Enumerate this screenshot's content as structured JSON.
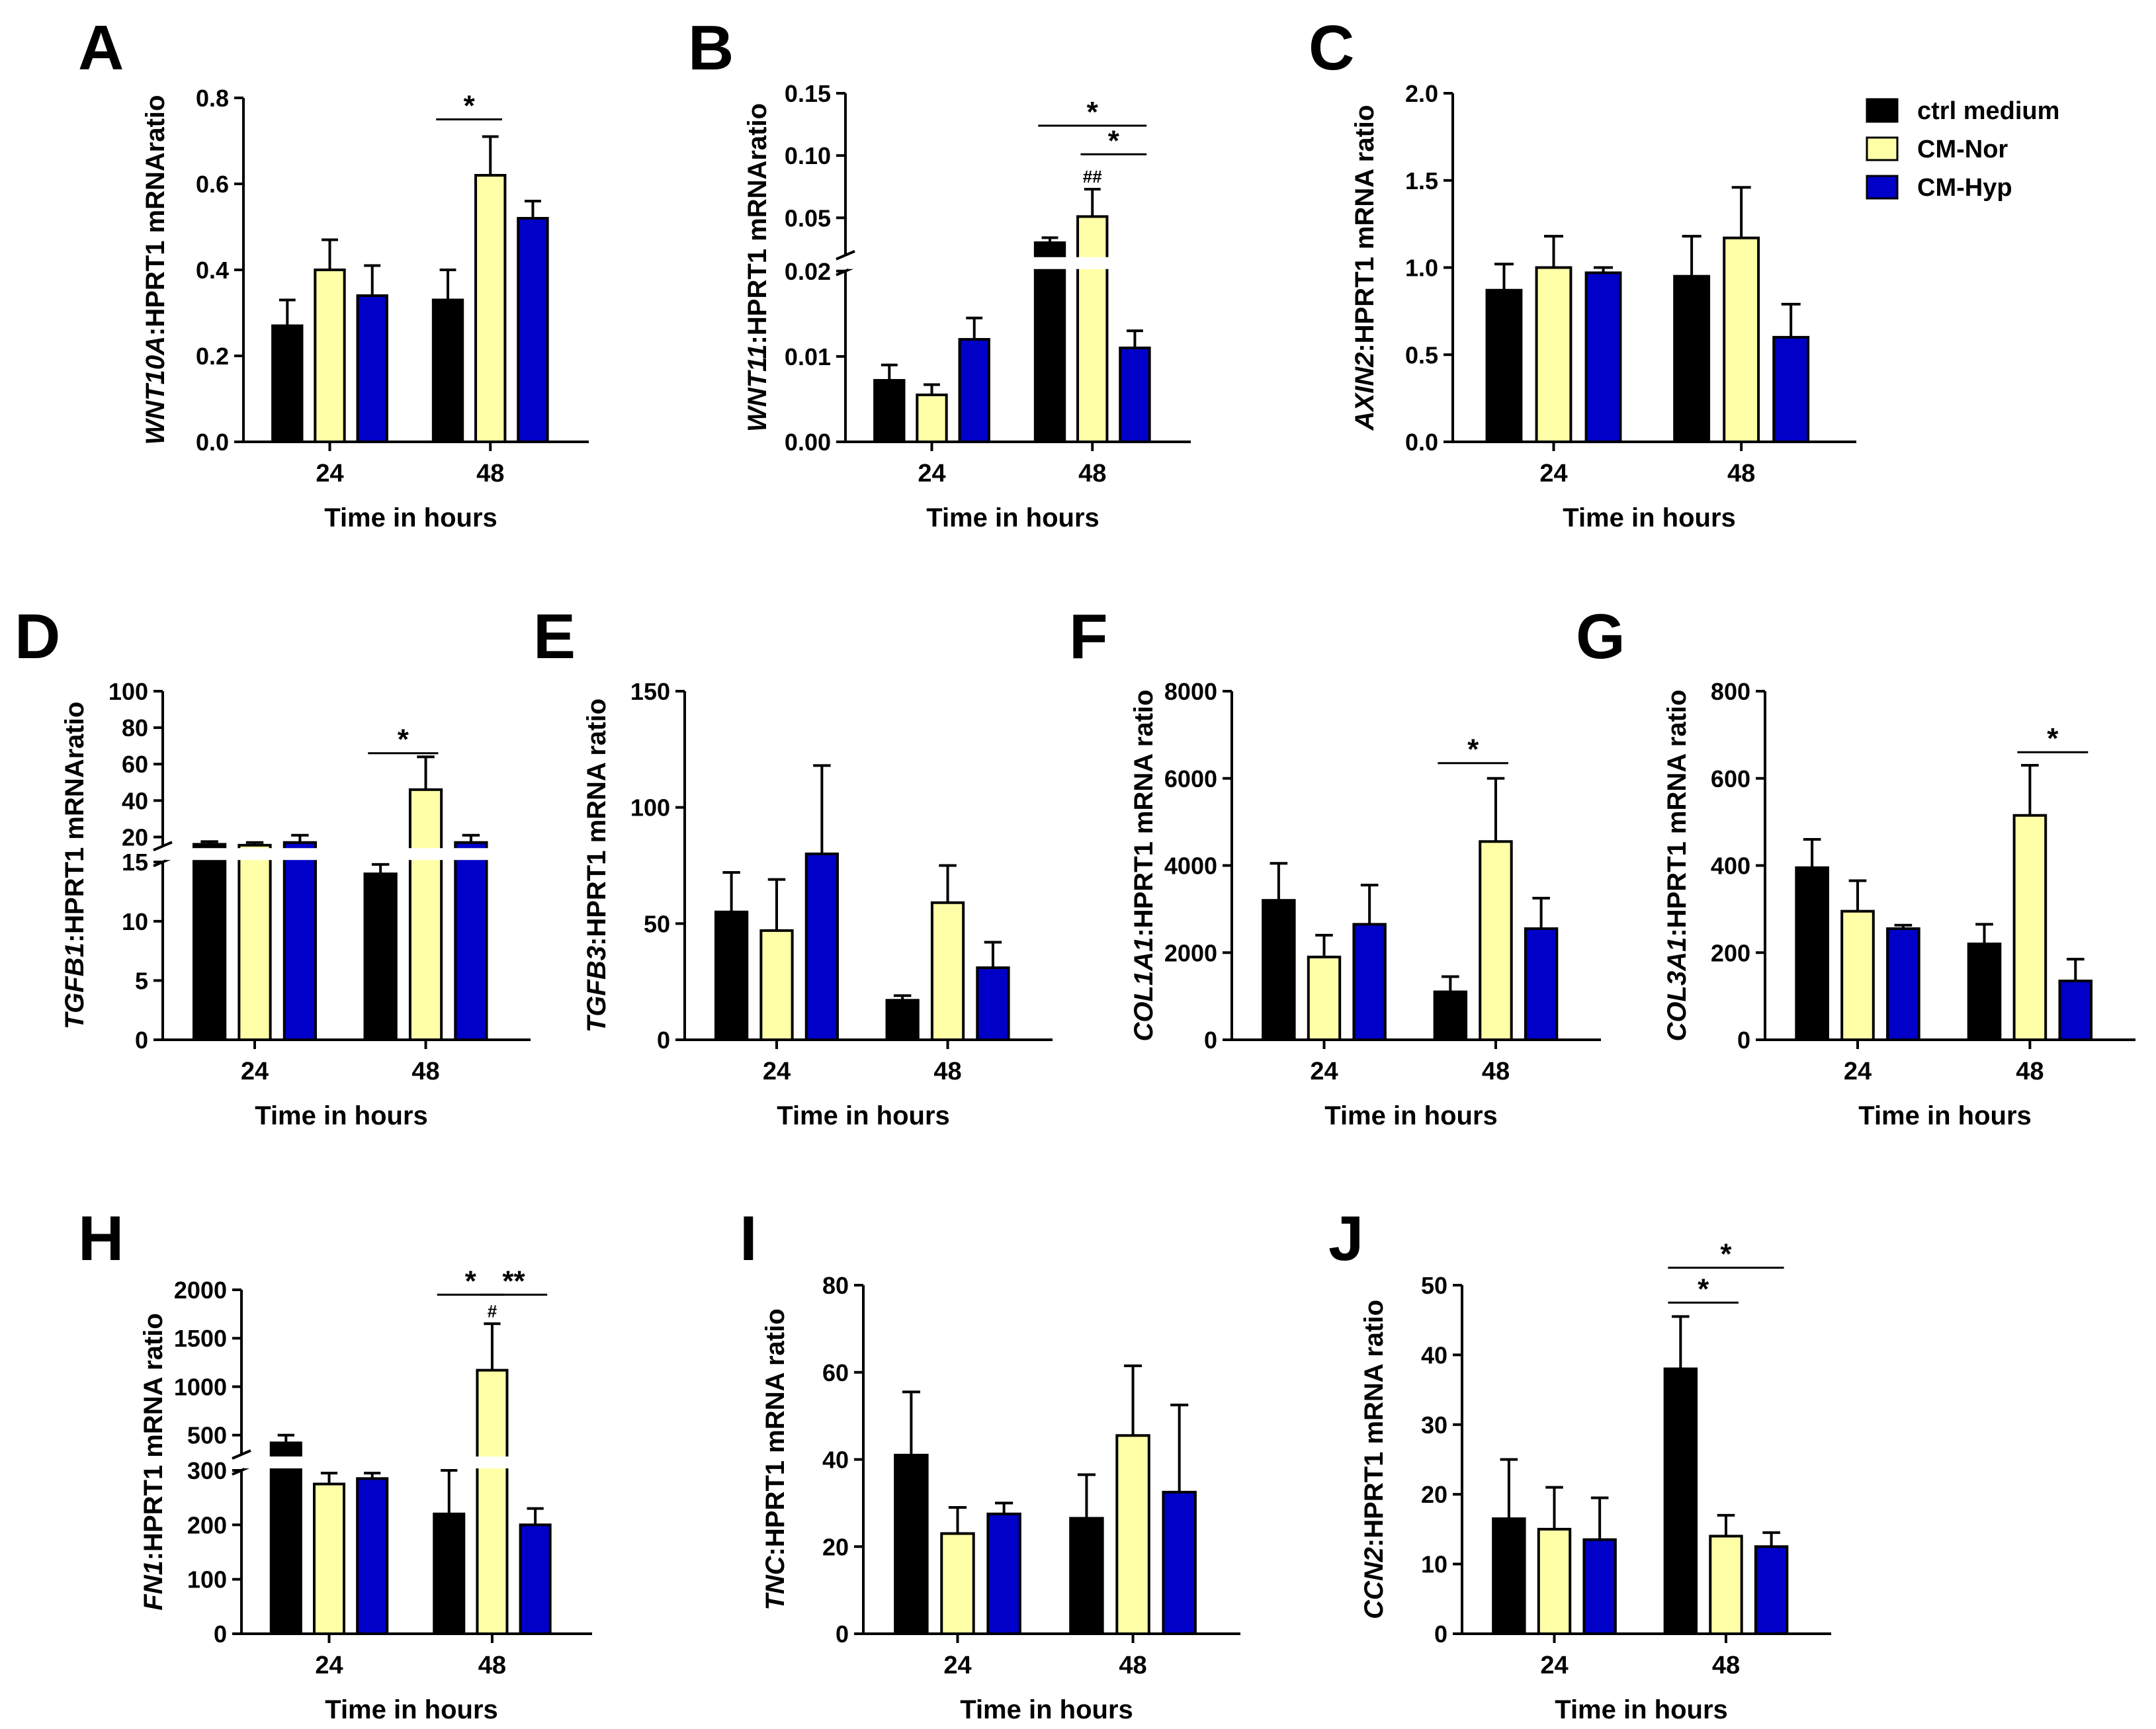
{
  "legend": [
    {
      "name": "ctrl medium",
      "color": "#000000"
    },
    {
      "name": "CM-Nor",
      "color": "#FFFFA8"
    },
    {
      "name": "CM-Hyp",
      "color": "#0000C8"
    }
  ],
  "chart_data": [
    {
      "panel": "A",
      "type": "bar",
      "gene": "WNT10A",
      "ylabel_suffix": ":HPRT1 mRNAratio",
      "xlabel": "Time in hours",
      "categories": [
        "24",
        "48"
      ],
      "ylim": [
        0,
        0.8
      ],
      "yticks": [
        {
          "v": 0,
          "label": "0.0"
        },
        {
          "v": 0.2,
          "label": "0.2"
        },
        {
          "v": 0.4,
          "label": "0.4"
        },
        {
          "v": 0.6,
          "label": "0.6"
        },
        {
          "v": 0.8,
          "label": "0.8"
        }
      ],
      "series": [
        {
          "name": "ctrl medium",
          "values": [
            0.27,
            0.33
          ],
          "errors": [
            0.06,
            0.07
          ]
        },
        {
          "name": "CM-Nor",
          "values": [
            0.4,
            0.62
          ],
          "errors": [
            0.07,
            0.09
          ]
        },
        {
          "name": "CM-Hyp",
          "values": [
            0.34,
            0.52
          ],
          "errors": [
            0.07,
            0.04
          ]
        }
      ],
      "annotations": [
        {
          "text": "*",
          "from": [
            1,
            0
          ],
          "to": [
            1,
            1
          ],
          "y": 0.75
        }
      ],
      "hash": []
    },
    {
      "panel": "B",
      "type": "bar",
      "gene": "WNT11",
      "ylabel_suffix": ":HPRT1 mRNAratio",
      "xlabel": "Time in hours",
      "categories": [
        "24",
        "48"
      ],
      "axis_break": {
        "lower": [
          0,
          0.02
        ],
        "upper": [
          0.02,
          0.15
        ],
        "lower_frac": 0.49
      },
      "yticks": [
        {
          "v": 0,
          "label": "0.00"
        },
        {
          "v": 0.01,
          "label": "0.01"
        },
        {
          "v": 0.02,
          "label": "0.02"
        },
        {
          "v": 0.05,
          "label": "0.05"
        },
        {
          "v": 0.1,
          "label": "0.10"
        },
        {
          "v": 0.15,
          "label": "0.15"
        }
      ],
      "series": [
        {
          "name": "ctrl medium",
          "values": [
            0.0072,
            0.03
          ],
          "errors": [
            0.0018,
            0.004
          ]
        },
        {
          "name": "CM-Nor",
          "values": [
            0.0055,
            0.051
          ],
          "errors": [
            0.0012,
            0.022
          ]
        },
        {
          "name": "CM-Hyp",
          "values": [
            0.012,
            0.011
          ],
          "errors": [
            0.0025,
            0.002
          ]
        }
      ],
      "annotations": [
        {
          "text": "*",
          "from": [
            1,
            0
          ],
          "to": [
            1,
            2
          ],
          "y": 0.124
        },
        {
          "text": "*",
          "from": [
            1,
            1
          ],
          "to": [
            1,
            2
          ],
          "y": 0.101
        }
      ],
      "hash": [
        {
          "text": "##",
          "group": 1,
          "series": 1
        }
      ]
    },
    {
      "panel": "C",
      "type": "bar",
      "gene": "AXIN2",
      "ylabel_suffix": ":HPRT1 mRNA ratio",
      "xlabel": "Time in hours",
      "categories": [
        "24",
        "48"
      ],
      "ylim": [
        0,
        2.0
      ],
      "yticks": [
        {
          "v": 0,
          "label": "0.0"
        },
        {
          "v": 0.5,
          "label": "0.5"
        },
        {
          "v": 1.0,
          "label": "1.0"
        },
        {
          "v": 1.5,
          "label": "1.5"
        },
        {
          "v": 2.0,
          "label": "2.0"
        }
      ],
      "series": [
        {
          "name": "ctrl medium",
          "values": [
            0.87,
            0.95
          ],
          "errors": [
            0.15,
            0.23
          ]
        },
        {
          "name": "CM-Nor",
          "values": [
            1.0,
            1.17
          ],
          "errors": [
            0.18,
            0.29
          ]
        },
        {
          "name": "CM-Hyp",
          "values": [
            0.97,
            0.6
          ],
          "errors": [
            0.03,
            0.19
          ]
        }
      ],
      "annotations": [],
      "hash": []
    },
    {
      "panel": "D",
      "type": "bar",
      "gene": "TGFB1",
      "ylabel_suffix": ":HPRT1 mRNAratio",
      "xlabel": "Time in hours",
      "categories": [
        "24",
        "48"
      ],
      "axis_break": {
        "lower": [
          0,
          15
        ],
        "upper": [
          15,
          100
        ],
        "lower_frac": 0.51
      },
      "yticks": [
        {
          "v": 0,
          "label": "0"
        },
        {
          "v": 5,
          "label": "5"
        },
        {
          "v": 10,
          "label": "10"
        },
        {
          "v": 15,
          "label": "15"
        },
        {
          "v": 20,
          "label": "20"
        },
        {
          "v": 40,
          "label": "40"
        },
        {
          "v": 60,
          "label": "60"
        },
        {
          "v": 80,
          "label": "80"
        },
        {
          "v": 100,
          "label": "100"
        }
      ],
      "series": [
        {
          "name": "ctrl medium",
          "values": [
            16,
            14
          ],
          "errors": [
            1.5,
            0.8
          ]
        },
        {
          "name": "CM-Nor",
          "values": [
            15.5,
            46
          ],
          "errors": [
            1.5,
            18
          ]
        },
        {
          "name": "CM-Hyp",
          "values": [
            17,
            17
          ],
          "errors": [
            4,
            4
          ]
        }
      ],
      "annotations": [
        {
          "text": "*",
          "from": [
            1,
            0
          ],
          "to": [
            1,
            1
          ],
          "y": 66
        }
      ],
      "hash": []
    },
    {
      "panel": "E",
      "type": "bar",
      "gene": "TGFB3",
      "ylabel_suffix": ":HPRT1 mRNA ratio",
      "xlabel": "Time in hours",
      "categories": [
        "24",
        "48"
      ],
      "ylim": [
        0,
        150
      ],
      "yticks": [
        {
          "v": 0,
          "label": "0"
        },
        {
          "v": 50,
          "label": "50"
        },
        {
          "v": 100,
          "label": "100"
        },
        {
          "v": 150,
          "label": "150"
        }
      ],
      "series": [
        {
          "name": "ctrl medium",
          "values": [
            55,
            17
          ],
          "errors": [
            17,
            2
          ]
        },
        {
          "name": "CM-Nor",
          "values": [
            47,
            59
          ],
          "errors": [
            22,
            16
          ]
        },
        {
          "name": "CM-Hyp",
          "values": [
            80,
            31
          ],
          "errors": [
            38,
            11
          ]
        }
      ],
      "annotations": [],
      "hash": []
    },
    {
      "panel": "F",
      "type": "bar",
      "gene": "COL1A1",
      "ylabel_suffix": ":HPRT1 mRNA ratio",
      "xlabel": "Time in hours",
      "categories": [
        "24",
        "48"
      ],
      "ylim": [
        0,
        8000
      ],
      "yticks": [
        {
          "v": 0,
          "label": "0"
        },
        {
          "v": 2000,
          "label": "2000"
        },
        {
          "v": 4000,
          "label": "4000"
        },
        {
          "v": 6000,
          "label": "6000"
        },
        {
          "v": 8000,
          "label": "8000"
        }
      ],
      "series": [
        {
          "name": "ctrl medium",
          "values": [
            3200,
            1100
          ],
          "errors": [
            850,
            350
          ]
        },
        {
          "name": "CM-Nor",
          "values": [
            1900,
            4550
          ],
          "errors": [
            500,
            1450
          ]
        },
        {
          "name": "CM-Hyp",
          "values": [
            2650,
            2550
          ],
          "errors": [
            900,
            700
          ]
        }
      ],
      "annotations": [
        {
          "text": "*",
          "from": [
            1,
            0
          ],
          "to": [
            1,
            1
          ],
          "y": 6350
        }
      ],
      "hash": []
    },
    {
      "panel": "G",
      "type": "bar",
      "gene": "COL3A1",
      "ylabel_suffix": ":HPRT1 mRNA ratio",
      "xlabel": "Time in hours",
      "categories": [
        "24",
        "48"
      ],
      "ylim": [
        0,
        800
      ],
      "yticks": [
        {
          "v": 0,
          "label": "0"
        },
        {
          "v": 200,
          "label": "200"
        },
        {
          "v": 400,
          "label": "400"
        },
        {
          "v": 600,
          "label": "600"
        },
        {
          "v": 800,
          "label": "800"
        }
      ],
      "series": [
        {
          "name": "ctrl medium",
          "values": [
            395,
            220
          ],
          "errors": [
            65,
            45
          ]
        },
        {
          "name": "CM-Nor",
          "values": [
            295,
            515
          ],
          "errors": [
            70,
            115
          ]
        },
        {
          "name": "CM-Hyp",
          "values": [
            255,
            135
          ],
          "errors": [
            8,
            50
          ]
        }
      ],
      "annotations": [
        {
          "text": "*",
          "from": [
            1,
            1
          ],
          "to": [
            1,
            2
          ],
          "y": 660
        }
      ],
      "hash": []
    },
    {
      "panel": "H",
      "type": "bar",
      "gene": "FN1",
      "ylabel_suffix": ":HPRT1 mRNA ratio",
      "xlabel": "Time in hours",
      "categories": [
        "24",
        "48"
      ],
      "axis_break": {
        "lower": [
          0,
          300
        ],
        "upper": [
          300,
          2000
        ],
        "lower_frac": 0.475
      },
      "yticks": [
        {
          "v": 0,
          "label": "0"
        },
        {
          "v": 100,
          "label": "100"
        },
        {
          "v": 200,
          "label": "200"
        },
        {
          "v": 300,
          "label": "300"
        },
        {
          "v": 500,
          "label": "500"
        },
        {
          "v": 1000,
          "label": "1000"
        },
        {
          "v": 1500,
          "label": "1500"
        },
        {
          "v": 2000,
          "label": "2000"
        }
      ],
      "series": [
        {
          "name": "ctrl medium",
          "values": [
            420,
            220
          ],
          "errors": [
            80,
            80
          ]
        },
        {
          "name": "CM-Nor",
          "values": [
            275,
            1170
          ],
          "errors": [
            20,
            480
          ]
        },
        {
          "name": "CM-Hyp",
          "values": [
            285,
            200
          ],
          "errors": [
            10,
            30
          ]
        }
      ],
      "annotations": [
        {
          "text": "*",
          "from": [
            1,
            0
          ],
          "to": [
            1,
            1
          ],
          "y": 1950
        },
        {
          "text": "**",
          "from": [
            1,
            1
          ],
          "to": [
            1,
            2
          ],
          "y": 1950
        }
      ],
      "hash": [
        {
          "text": "#",
          "group": 1,
          "series": 1
        }
      ]
    },
    {
      "panel": "I",
      "type": "bar",
      "gene": "TNC",
      "ylabel_suffix": ":HPRT1 mRNA ratio",
      "xlabel": "Time in hours",
      "categories": [
        "24",
        "48"
      ],
      "ylim": [
        0,
        80
      ],
      "yticks": [
        {
          "v": 0,
          "label": "0"
        },
        {
          "v": 20,
          "label": "20"
        },
        {
          "v": 40,
          "label": "40"
        },
        {
          "v": 60,
          "label": "60"
        },
        {
          "v": 80,
          "label": "80"
        }
      ],
      "series": [
        {
          "name": "ctrl medium",
          "values": [
            41,
            26.5
          ],
          "errors": [
            14.5,
            10
          ]
        },
        {
          "name": "CM-Nor",
          "values": [
            23,
            45.5
          ],
          "errors": [
            6,
            16
          ]
        },
        {
          "name": "CM-Hyp",
          "values": [
            27.5,
            32.5
          ],
          "errors": [
            2.5,
            20
          ]
        }
      ],
      "annotations": [],
      "hash": []
    },
    {
      "panel": "J",
      "type": "bar",
      "gene": "CCN2",
      "ylabel_suffix": ":HPRT1 mRNA ratio",
      "xlabel": "Time in hours",
      "categories": [
        "24",
        "48"
      ],
      "ylim": [
        0,
        50
      ],
      "yticks": [
        {
          "v": 0,
          "label": "0"
        },
        {
          "v": 10,
          "label": "10"
        },
        {
          "v": 20,
          "label": "20"
        },
        {
          "v": 30,
          "label": "30"
        },
        {
          "v": 40,
          "label": "40"
        },
        {
          "v": 50,
          "label": "50"
        }
      ],
      "series": [
        {
          "name": "ctrl medium",
          "values": [
            16.5,
            38
          ],
          "errors": [
            8.5,
            7.5
          ]
        },
        {
          "name": "CM-Nor",
          "values": [
            15,
            14
          ],
          "errors": [
            6,
            3
          ]
        },
        {
          "name": "CM-Hyp",
          "values": [
            13.5,
            12.5
          ],
          "errors": [
            6,
            2
          ]
        }
      ],
      "annotations": [
        {
          "text": "*",
          "from": [
            1,
            0
          ],
          "to": [
            1,
            2
          ],
          "y": 52.5
        },
        {
          "text": "*",
          "from": [
            1,
            0
          ],
          "to": [
            1,
            1
          ],
          "y": 47.5
        }
      ],
      "hash": []
    }
  ]
}
